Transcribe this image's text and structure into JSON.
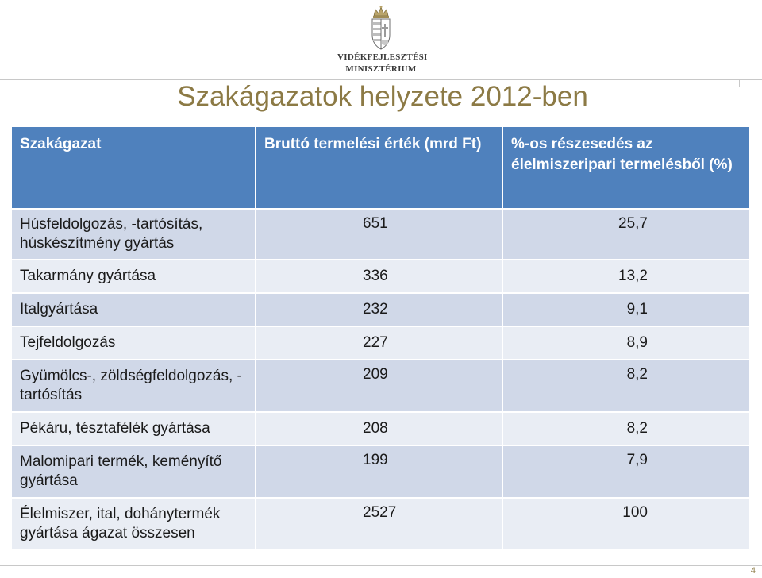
{
  "header": {
    "ministry_line1": "VIDÉKFEJLESZTÉSI",
    "ministry_line2": "MINISZTÉRIUM"
  },
  "title": "Szakágazatok helyzete 2012-ben",
  "table": {
    "columns": [
      "Szakágazat",
      "Bruttó termelési érték (mrd Ft)",
      "%-os részesedés  az élelmiszeripari termelésből (%)"
    ],
    "rows": [
      {
        "sector": "Húsfeldolgozás, -tartósítás, húskészítmény gyártás",
        "value": "651",
        "share": "25,7"
      },
      {
        "sector": "Takarmány gyártása",
        "value": "336",
        "share": "13,2"
      },
      {
        "sector": "Italgyártása",
        "value": "232",
        "share": "9,1"
      },
      {
        "sector": "Tejfeldolgozás",
        "value": "227",
        "share": "8,9"
      },
      {
        "sector": "Gyümölcs-, zöldségfeldolgozás, -tartósítás",
        "value": "209",
        "share": "8,2"
      },
      {
        "sector": "Pékáru, tésztafélék gyártása",
        "value": "208",
        "share": "8,2"
      },
      {
        "sector": "Malomipari termék, keményítő gyártása",
        "value": "199",
        "share": "7,9"
      },
      {
        "sector": "Élelmiszer, ital, dohánytermék gyártása ágazat összesen",
        "value": "2527",
        "share": "100"
      }
    ]
  },
  "footer": {
    "page_number": "4"
  }
}
